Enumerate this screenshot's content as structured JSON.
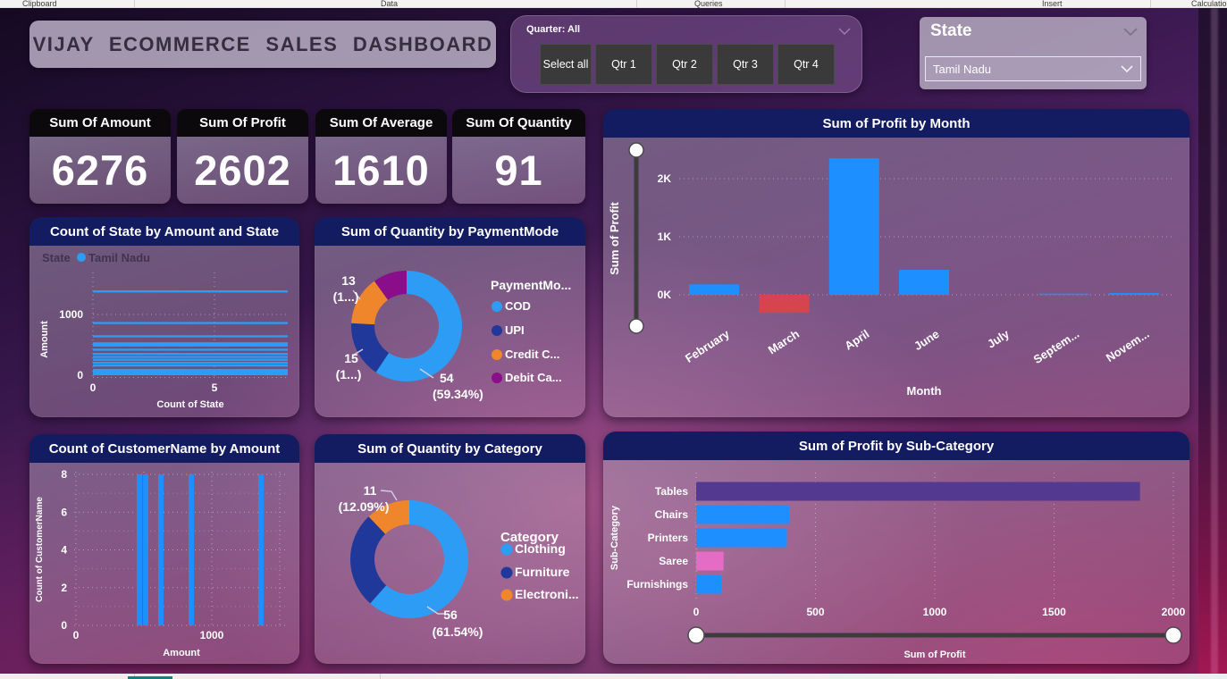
{
  "ribbon": {
    "tabs": [
      "Clipboard",
      "Data",
      "Queries",
      "Insert",
      "Calculatio"
    ]
  },
  "header": {
    "title": "VIJAY  ECOMMERCE  SALES DASHBOARD"
  },
  "quarter_slicer": {
    "label": "Quarter: All",
    "buttons": [
      "Select all",
      "Qtr 1",
      "Qtr 2",
      "Qtr 3",
      "Qtr 4"
    ]
  },
  "state_slicer": {
    "title": "State",
    "selected": "Tamil Nadu"
  },
  "kpis": [
    {
      "label": "Sum Of Amount",
      "value": "6276"
    },
    {
      "label": "Sum Of Profit",
      "value": "2602"
    },
    {
      "label": "Sum Of Average",
      "value": "1610"
    },
    {
      "label": "Sum Of Quantity",
      "value": "91"
    }
  ],
  "colors": {
    "accent_blue": "#2D9CF5",
    "bar_blue": "#1E8FFF",
    "navy": "#1F3899",
    "orange": "#F0862B",
    "debit_purple": "#8A0D8A",
    "negative_red": "#D6454F",
    "tables_purple": "#53398F",
    "saree_pink": "#E56CC4",
    "panel_header": "#131C61"
  },
  "chart_data": [
    {
      "id": "state-amount",
      "type": "bar",
      "title": "Count of State by Amount and State",
      "legend": {
        "series_label": "State",
        "item": "Tamil Nadu"
      },
      "xlabel": "Count of State",
      "ylabel": "Amount",
      "xticks": [
        0,
        5
      ],
      "yticks": [
        0,
        1000
      ],
      "count_extent": 8,
      "line_amounts": [
        1380,
        860,
        640,
        525,
        490,
        420,
        350,
        300,
        255,
        205,
        160
      ],
      "base_band": [
        0,
        105
      ]
    },
    {
      "id": "payment-mode",
      "type": "pie",
      "title": "Sum of Quantity by PaymentMode",
      "legend_title": "PaymentMo...",
      "slices": [
        {
          "label": "COD",
          "value": 54,
          "pct": 59.34,
          "color_key": "accent_blue",
          "callout": [
            "54",
            "(59.34%)"
          ]
        },
        {
          "label": "UPI",
          "value": 15,
          "pct": 16.48,
          "color_key": "navy",
          "callout": [
            "15",
            "(1...)"
          ]
        },
        {
          "label": "Credit C...",
          "value": 13,
          "pct": 14.29,
          "color_key": "orange",
          "callout": [
            "13",
            "(1...)"
          ]
        },
        {
          "label": "Debit Ca...",
          "value": 9,
          "pct": 9.89,
          "color_key": "debit_purple",
          "callout": []
        }
      ]
    },
    {
      "id": "profit-by-month",
      "type": "bar",
      "title": "Sum of Profit by Month",
      "categories": [
        "February",
        "March",
        "April",
        "June",
        "July",
        "Septem...",
        "Novem..."
      ],
      "values": [
        180,
        -310,
        2350,
        430,
        0,
        20,
        30
      ],
      "ytick_labels": [
        "2K",
        "1K",
        "0K"
      ],
      "ytick_values": [
        2000,
        1000,
        0
      ],
      "xlabel": "Month",
      "ylabel": "Sum of Profit",
      "has_y_range_slider": true
    },
    {
      "id": "customer-by-amount",
      "type": "bar",
      "title": "Count of CustomerName by Amount",
      "x": [
        467,
        513,
        625,
        849,
        1362
      ],
      "values": [
        8,
        8,
        8,
        8,
        8
      ],
      "xticks": [
        0,
        1000
      ],
      "yticks": [
        0,
        2,
        4,
        6,
        8
      ],
      "xlabel": "Amount",
      "ylabel": "Count of CustomerName"
    },
    {
      "id": "quantity-by-category",
      "type": "pie",
      "title": "Sum of Quantity by Category",
      "legend_title": "Category",
      "slices": [
        {
          "label": "Clothing",
          "value": 56,
          "pct": 61.54,
          "color_key": "accent_blue",
          "callout": [
            "56",
            "(61.54%)"
          ]
        },
        {
          "label": "Furniture",
          "value": 24,
          "pct": 26.37,
          "color_key": "navy",
          "callout": []
        },
        {
          "label": "Electroni...",
          "value": 11,
          "pct": 12.09,
          "color_key": "orange",
          "callout": [
            "11",
            "(12.09%)"
          ]
        }
      ]
    },
    {
      "id": "profit-by-subcategory",
      "type": "bar",
      "title": "Sum of Profit by Sub-Category",
      "categories": [
        "Tables",
        "Chairs",
        "Printers",
        "Saree",
        "Furnishings"
      ],
      "values": [
        1860,
        390,
        380,
        115,
        105
      ],
      "bar_color_keys": [
        "tables_purple",
        "bar_blue",
        "bar_blue",
        "saree_pink",
        "bar_blue"
      ],
      "xticks": [
        0,
        500,
        1000,
        1500,
        2000
      ],
      "xlabel": "Sum of Profit",
      "ylabel": "Sub-Category",
      "has_x_range_slider": true
    }
  ]
}
